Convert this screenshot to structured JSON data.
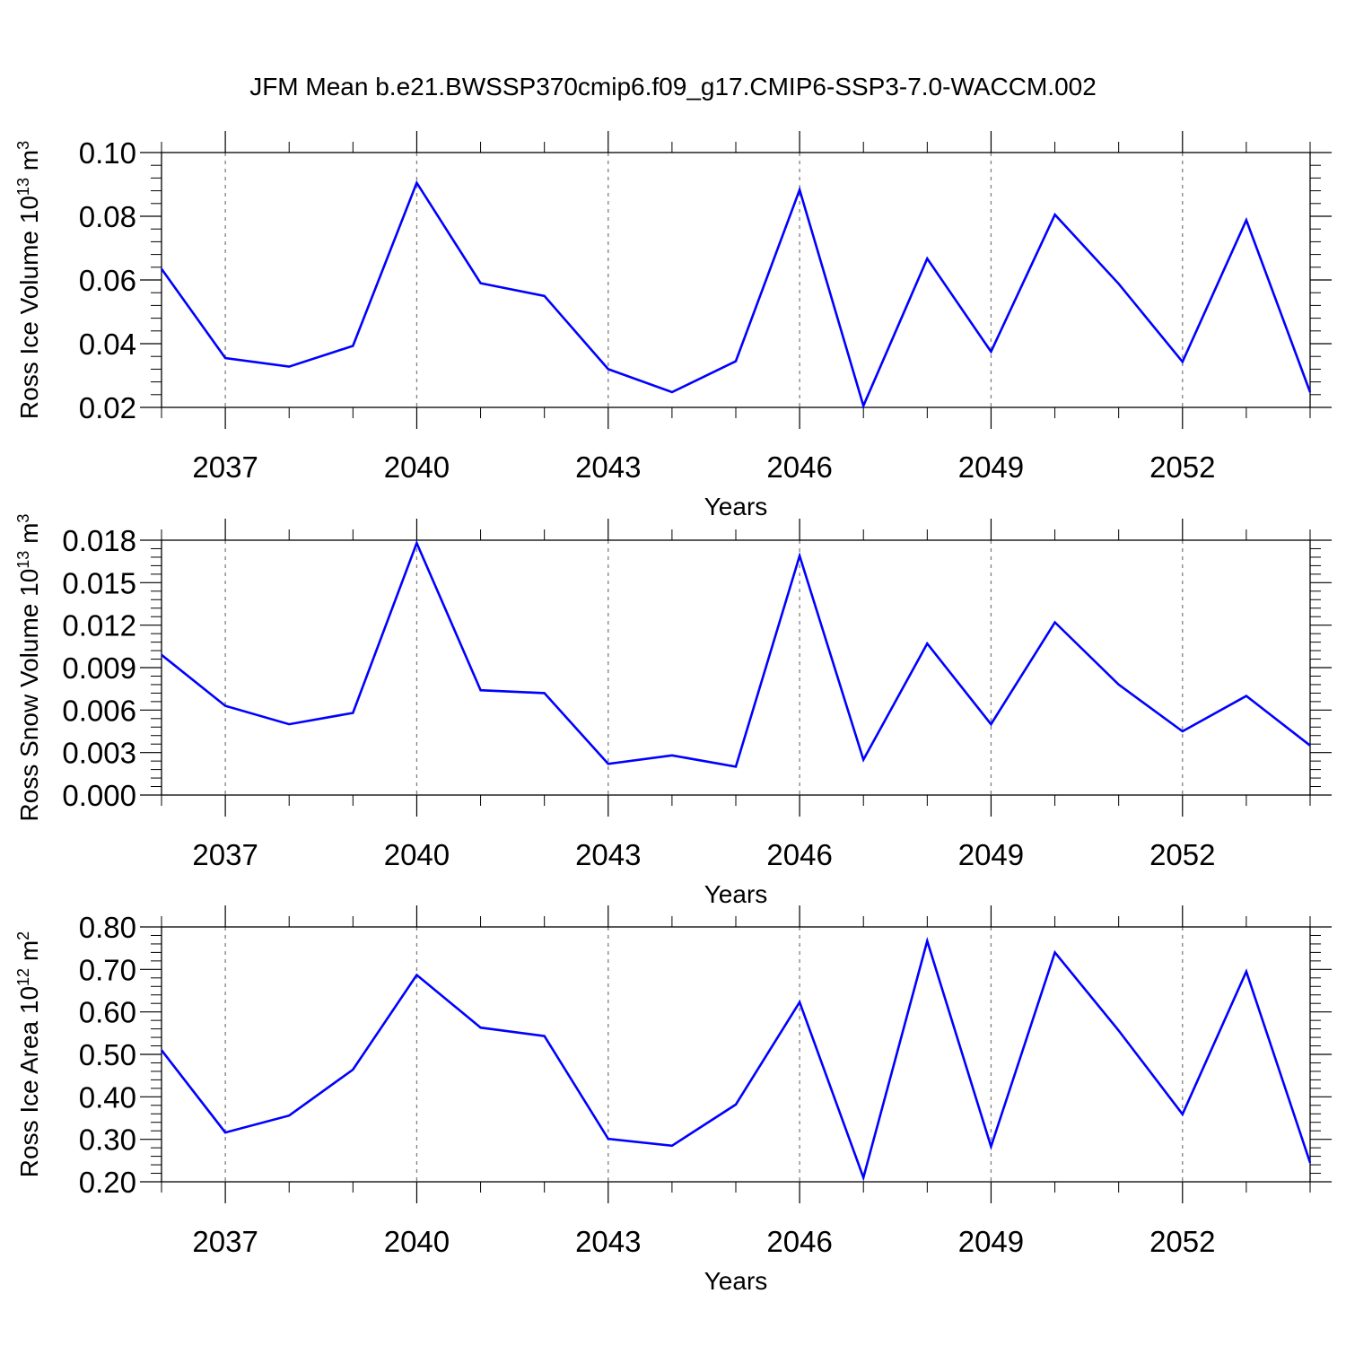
{
  "title": "JFM Mean b.e21.BWSSP370cmip6.f09_g17.CMIP6-SSP3-7.0-WACCM.002",
  "chart_data": [
    {
      "type": "line",
      "title": "",
      "xlabel": "Years",
      "ylabel": "Ross Ice Volume 10",
      "ylabel_exp": "13",
      "ylabel_unit": " m",
      "ylabel_unit_exp": "3",
      "x": [
        2036,
        2037,
        2038,
        2039,
        2040,
        2041,
        2042,
        2043,
        2044,
        2045,
        2046,
        2047,
        2048,
        2049,
        2050,
        2051,
        2052,
        2053,
        2054
      ],
      "xlim": [
        2036,
        2054
      ],
      "xticks": [
        "2037",
        "2040",
        "2043",
        "2046",
        "2049",
        "2052"
      ],
      "ylim": [
        0.02,
        0.1
      ],
      "yticks": [
        "0.02",
        "0.04",
        "0.06",
        "0.08",
        "0.10"
      ],
      "series": [
        {
          "values": [
            0.0635,
            0.0355,
            0.0328,
            0.0393,
            0.0905,
            0.059,
            0.055,
            0.032,
            0.0248,
            0.0345,
            0.0883,
            0.0205,
            0.0667,
            0.0375,
            0.0805,
            0.0588,
            0.0343,
            0.0788,
            0.0248
          ],
          "color": "#0000ff"
        }
      ],
      "grid": "vertical dashed at major x ticks",
      "legend": "none"
    },
    {
      "type": "line",
      "title": "",
      "xlabel": "Years",
      "ylabel": "Ross Snow Volume 10",
      "ylabel_exp": "13",
      "ylabel_unit": " m",
      "ylabel_unit_exp": "3",
      "x": [
        2036,
        2037,
        2038,
        2039,
        2040,
        2041,
        2042,
        2043,
        2044,
        2045,
        2046,
        2047,
        2048,
        2049,
        2050,
        2051,
        2052,
        2053,
        2054
      ],
      "xlim": [
        2036,
        2054
      ],
      "xticks": [
        "2037",
        "2040",
        "2043",
        "2046",
        "2049",
        "2052"
      ],
      "ylim": [
        0,
        0.018
      ],
      "yticks": [
        "0.000",
        "0.003",
        "0.006",
        "0.009",
        "0.012",
        "0.015",
        "0.018"
      ],
      "series": [
        {
          "values": [
            0.0099,
            0.0063,
            0.005,
            0.0058,
            0.0178,
            0.0074,
            0.0072,
            0.0022,
            0.0028,
            0.002,
            0.0169,
            0.0025,
            0.0107,
            0.005,
            0.0122,
            0.0078,
            0.0045,
            0.007,
            0.0035
          ],
          "color": "#0000ff"
        }
      ],
      "grid": "vertical dashed at major x ticks",
      "legend": "none"
    },
    {
      "type": "line",
      "title": "",
      "xlabel": "Years",
      "ylabel": "Ross Ice Area 10",
      "ylabel_exp": "12",
      "ylabel_unit": " m",
      "ylabel_unit_exp": "2",
      "x": [
        2036,
        2037,
        2038,
        2039,
        2040,
        2041,
        2042,
        2043,
        2044,
        2045,
        2046,
        2047,
        2048,
        2049,
        2050,
        2051,
        2052,
        2053,
        2054
      ],
      "xlim": [
        2036,
        2054
      ],
      "xticks": [
        "2037",
        "2040",
        "2043",
        "2046",
        "2049",
        "2052"
      ],
      "ylim": [
        0.2,
        0.8
      ],
      "yticks": [
        "0.20",
        "0.30",
        "0.40",
        "0.50",
        "0.60",
        "0.70",
        "0.80"
      ],
      "series": [
        {
          "values": [
            0.51,
            0.316,
            0.356,
            0.464,
            0.687,
            0.563,
            0.543,
            0.301,
            0.285,
            0.382,
            0.623,
            0.21,
            0.767,
            0.283,
            0.74,
            0.556,
            0.359,
            0.695,
            0.245
          ],
          "color": "#0000ff"
        }
      ],
      "grid": "vertical dashed at major x ticks",
      "legend": "none"
    }
  ]
}
